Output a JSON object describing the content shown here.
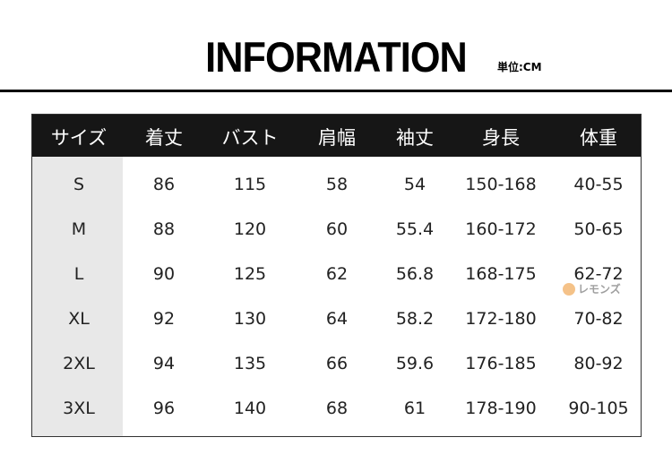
{
  "header": {
    "title": "INFORMATION",
    "unit": "単位:CM"
  },
  "table": {
    "columns": [
      "サイズ",
      "着丈",
      "バスト",
      "肩幅",
      "袖丈",
      "身長",
      "体重"
    ],
    "rows": [
      [
        "S",
        "86",
        "115",
        "58",
        "54",
        "150-168",
        "40-55"
      ],
      [
        "M",
        "88",
        "120",
        "60",
        "55.4",
        "160-172",
        "50-65"
      ],
      [
        "L",
        "90",
        "125",
        "62",
        "56.8",
        "168-175",
        "62-72"
      ],
      [
        "XL",
        "92",
        "130",
        "64",
        "58.2",
        "172-180",
        "70-82"
      ],
      [
        "2XL",
        "94",
        "135",
        "66",
        "59.6",
        "176-185",
        "80-92"
      ],
      [
        "3XL",
        "96",
        "140",
        "68",
        "61",
        "178-190",
        "90-105"
      ]
    ]
  },
  "watermark": {
    "text": "レモンズ",
    "logo_color": "#f2b36b"
  }
}
